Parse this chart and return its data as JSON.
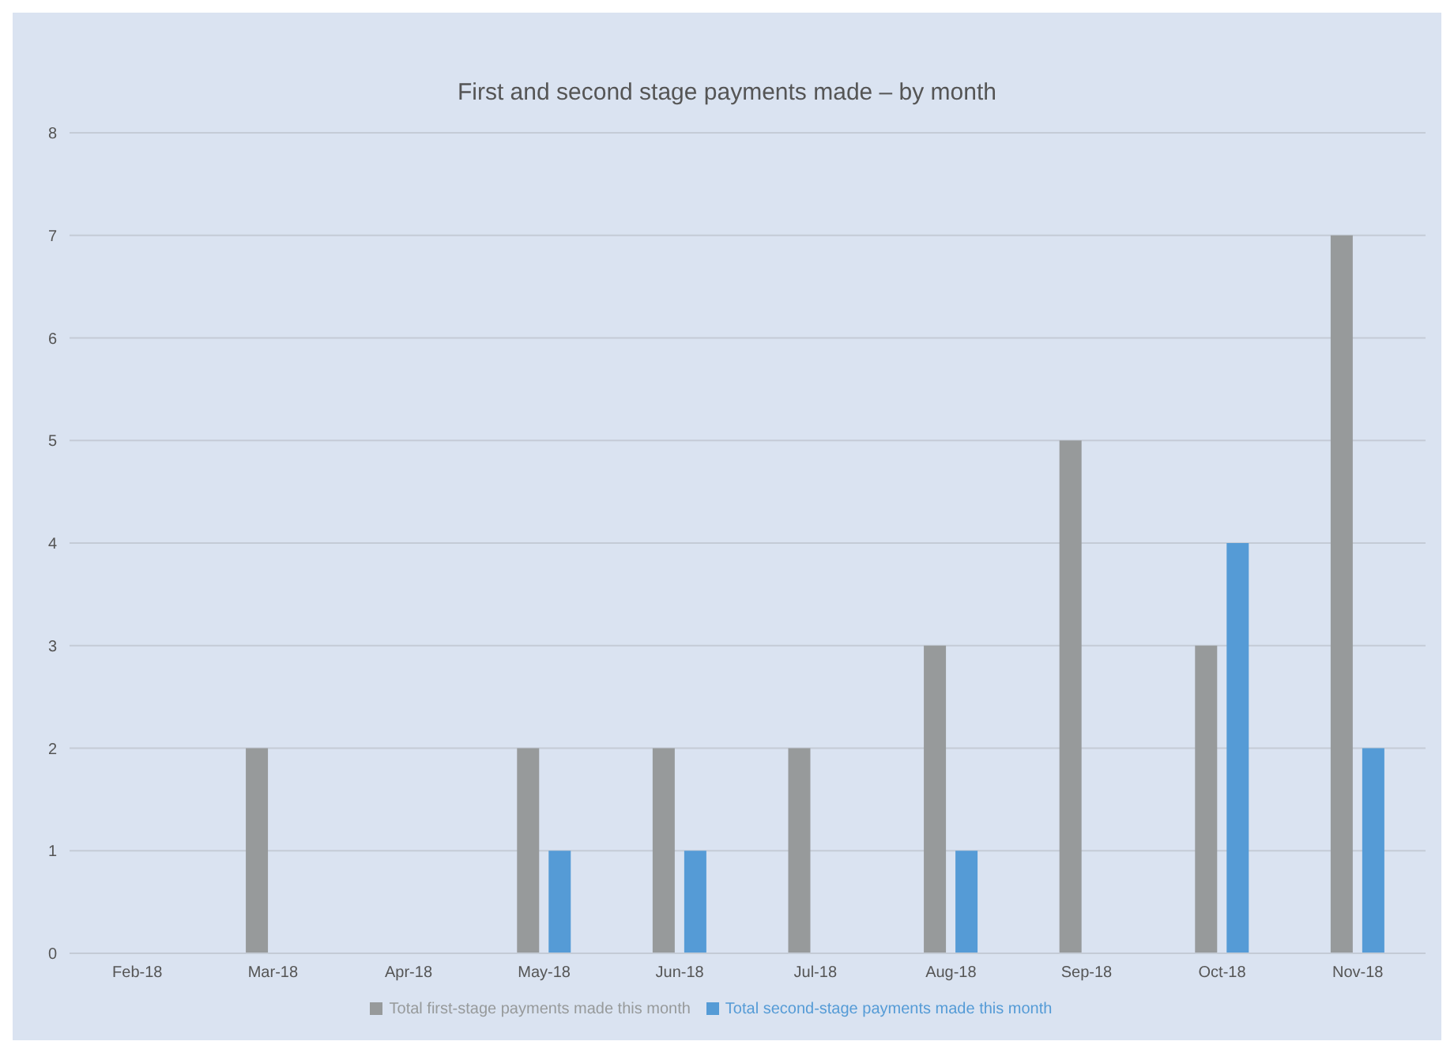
{
  "chart_data": {
    "type": "bar",
    "title": "First and second stage payments made – by month",
    "categories": [
      "Feb-18",
      "Mar-18",
      "Apr-18",
      "May-18",
      "Jun-18",
      "Jul-18",
      "Aug-18",
      "Sep-18",
      "Oct-18",
      "Nov-18"
    ],
    "series": [
      {
        "name": "Total first-stage payments made this month",
        "color": "#979a9b",
        "values": [
          0,
          2,
          0,
          2,
          2,
          2,
          3,
          5,
          3,
          7
        ]
      },
      {
        "name": "Total second-stage payments made this month",
        "color": "#559bd6",
        "values": [
          0,
          0,
          0,
          1,
          1,
          0,
          1,
          0,
          4,
          2
        ]
      }
    ],
    "ylim": [
      0,
      8
    ],
    "yticks": [
      0,
      1,
      2,
      3,
      4,
      5,
      6,
      7,
      8
    ],
    "grid": "y",
    "legend": "bottom"
  }
}
